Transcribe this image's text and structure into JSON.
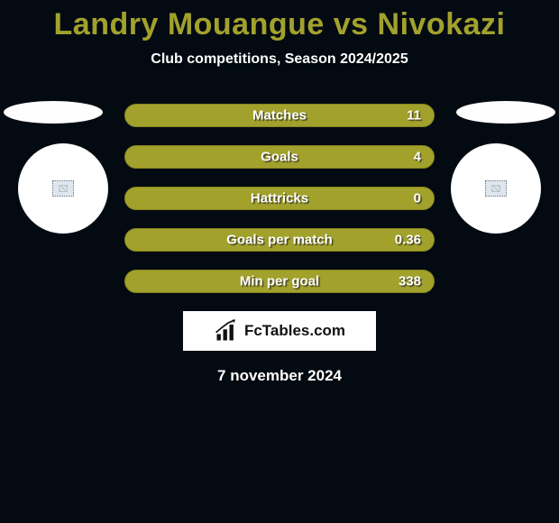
{
  "title": {
    "text": "Landry Mouangue vs Nivokazi",
    "color": "#a2a12c",
    "fontsize": 34
  },
  "subtitle": "Club competitions, Season 2024/2025",
  "bars": {
    "style": {
      "fill": "#a2a12c",
      "border": "#87861f",
      "height": 26,
      "radius": 13,
      "gap": 20,
      "label_color": "#ffffff",
      "label_fontsize": 15
    },
    "items": [
      {
        "label": "Matches",
        "value": "11"
      },
      {
        "label": "Goals",
        "value": "4"
      },
      {
        "label": "Hattricks",
        "value": "0"
      },
      {
        "label": "Goals per match",
        "value": "0.36"
      },
      {
        "label": "Min per goal",
        "value": "338"
      }
    ]
  },
  "players": {
    "left": {
      "ellipse_color": "#fefefe",
      "circle_color": "#ffffff"
    },
    "right": {
      "ellipse_color": "#fefefe",
      "circle_color": "#ffffff"
    }
  },
  "brand": {
    "name": "FcTables.com",
    "background": "#ffffff",
    "text_color": "#111111"
  },
  "date": "7 november 2024",
  "background_color": "#030a12"
}
